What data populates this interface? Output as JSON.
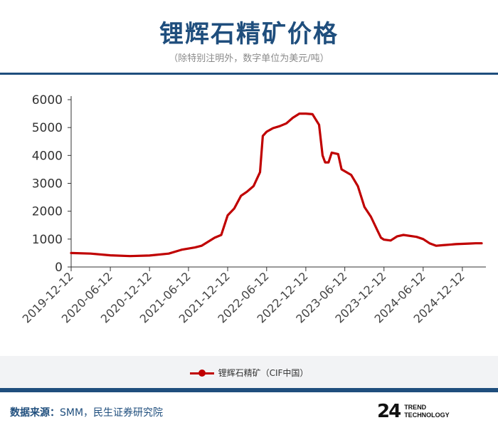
{
  "header": {
    "title": "锂辉石精矿价格",
    "subtitle": "（除特别注明外，数字单位为美元/吨）"
  },
  "footer": {
    "source_label": "数据来源：",
    "source_text": "SMM，民生证券研究院",
    "brand_mark": "24",
    "brand_line1": "TREND",
    "brand_line2": "TECHNOLOGY"
  },
  "colors": {
    "accent": "#1f4e7d",
    "series": "#c00000"
  },
  "chart_data": {
    "type": "line",
    "title": "锂辉石精矿价格",
    "xlabel": "",
    "ylabel": "",
    "ylim": [
      0,
      6000
    ],
    "yticks": [
      "0",
      "1000",
      "2000",
      "3000",
      "4000",
      "5000",
      "6000"
    ],
    "xticks": [
      "2019-12-12",
      "2020-06-12",
      "2020-12-12",
      "2021-06-12",
      "2021-12-12",
      "2022-06-12",
      "2022-12-12",
      "2023-06-12",
      "2023-12-12",
      "2024-06-12",
      "2024-12-12"
    ],
    "legend_position": "bottom",
    "grid": false,
    "series": [
      {
        "name": "锂辉石精矿（CIF中国）",
        "points": [
          [
            "2019-12-12",
            500
          ],
          [
            "2020-03-12",
            480
          ],
          [
            "2020-06-12",
            420
          ],
          [
            "2020-09-12",
            390
          ],
          [
            "2020-12-12",
            410
          ],
          [
            "2021-03-12",
            480
          ],
          [
            "2021-05-12",
            620
          ],
          [
            "2021-07-12",
            700
          ],
          [
            "2021-08-12",
            760
          ],
          [
            "2021-10-12",
            1050
          ],
          [
            "2021-11-12",
            1150
          ],
          [
            "2021-12-12",
            1850
          ],
          [
            "2022-01-12",
            2100
          ],
          [
            "2022-02-12",
            2550
          ],
          [
            "2022-03-12",
            2700
          ],
          [
            "2022-04-12",
            2900
          ],
          [
            "2022-05-12",
            3400
          ],
          [
            "2022-05-25",
            4700
          ],
          [
            "2022-06-12",
            4850
          ],
          [
            "2022-07-12",
            4980
          ],
          [
            "2022-08-12",
            5050
          ],
          [
            "2022-09-12",
            5150
          ],
          [
            "2022-10-12",
            5350
          ],
          [
            "2022-11-12",
            5500
          ],
          [
            "2022-12-12",
            5500
          ],
          [
            "2023-01-12",
            5480
          ],
          [
            "2023-02-12",
            5100
          ],
          [
            "2023-02-28",
            4000
          ],
          [
            "2023-03-12",
            3750
          ],
          [
            "2023-03-28",
            3750
          ],
          [
            "2023-04-12",
            4100
          ],
          [
            "2023-05-12",
            4050
          ],
          [
            "2023-05-28",
            3500
          ],
          [
            "2023-07-12",
            3300
          ],
          [
            "2023-08-12",
            2900
          ],
          [
            "2023-09-12",
            2150
          ],
          [
            "2023-10-12",
            1800
          ],
          [
            "2023-11-12",
            1300
          ],
          [
            "2023-11-28",
            1050
          ],
          [
            "2023-12-12",
            980
          ],
          [
            "2024-01-12",
            950
          ],
          [
            "2024-02-12",
            1100
          ],
          [
            "2024-03-12",
            1150
          ],
          [
            "2024-05-12",
            1080
          ],
          [
            "2024-06-12",
            1000
          ],
          [
            "2024-07-12",
            850
          ],
          [
            "2024-08-12",
            760
          ],
          [
            "2024-09-12",
            780
          ],
          [
            "2024-10-12",
            800
          ],
          [
            "2024-11-12",
            820
          ],
          [
            "2024-12-12",
            830
          ],
          [
            "2025-01-12",
            840
          ],
          [
            "2025-02-12",
            850
          ],
          [
            "2025-03-12",
            850
          ]
        ]
      }
    ]
  }
}
